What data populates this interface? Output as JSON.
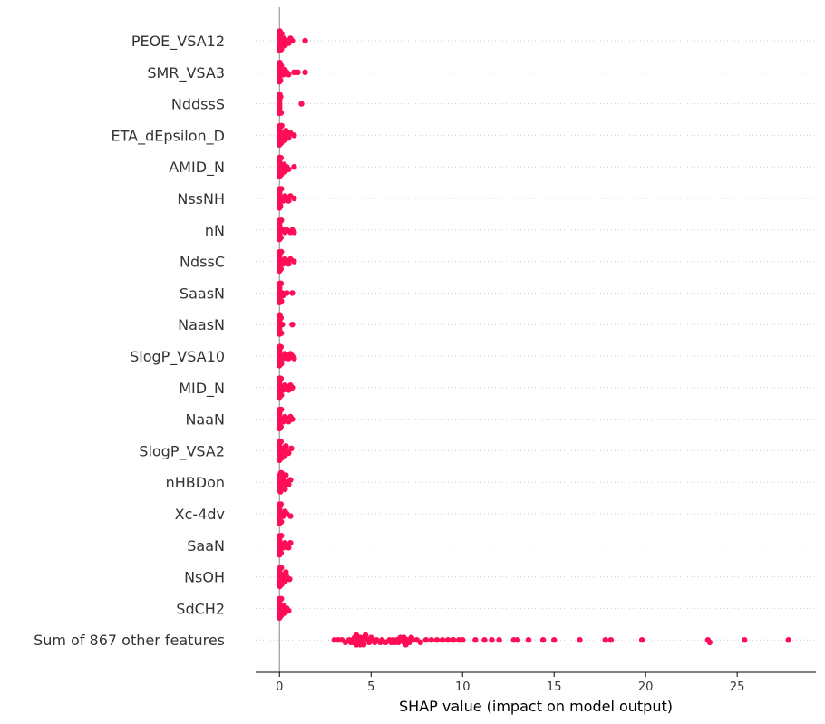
{
  "chart_data": {
    "type": "scatter",
    "subtype": "beeswarm",
    "title": "",
    "xlabel": "SHAP value (impact on model output)",
    "ylabel": "",
    "xlim": [
      -1.3,
      29.3
    ],
    "xticks": [
      0,
      5,
      10,
      15,
      20,
      25
    ],
    "grid": "horizontal-dotted",
    "legend": "none",
    "colors": {
      "points": "#ff0d57",
      "zero_line": "#999999",
      "grid": "#cccccc",
      "axis": "#000000"
    },
    "features": [
      {
        "name": "PEOE_VSA12",
        "values": [
          0,
          0,
          0,
          0,
          0,
          0,
          0,
          0,
          0,
          0,
          0,
          0,
          0.02,
          0.05,
          0.08,
          0.1,
          0.12,
          0.15,
          0.2,
          0.25,
          0.3,
          0.4,
          0.5,
          0.6,
          0.7,
          1.4
        ]
      },
      {
        "name": "SMR_VSA3",
        "values": [
          0,
          0,
          0,
          0,
          0,
          0,
          0,
          0,
          0,
          0,
          0,
          0,
          0.02,
          0.05,
          0.1,
          0.15,
          0.2,
          0.3,
          0.4,
          0.5,
          0.8,
          1.0,
          1.4
        ]
      },
      {
        "name": "NddssS",
        "values": [
          0,
          0,
          0,
          0,
          0,
          0,
          0,
          0,
          0,
          0,
          0,
          0,
          0,
          0,
          0.02,
          0.04,
          0.06,
          0.08,
          1.2
        ]
      },
      {
        "name": "ETA_dEpsilon_D",
        "values": [
          0,
          0,
          0,
          0,
          0,
          0,
          0,
          0,
          0.02,
          0.05,
          0.08,
          0.1,
          0.12,
          0.15,
          0.2,
          0.25,
          0.3,
          0.35,
          0.4,
          0.5,
          0.6,
          0.8
        ]
      },
      {
        "name": "AMID_N",
        "values": [
          0,
          0,
          0,
          0,
          0,
          0,
          0,
          0,
          0.02,
          0.05,
          0.08,
          0.1,
          0.15,
          0.2,
          0.25,
          0.3,
          0.4,
          0.5,
          0.8
        ]
      },
      {
        "name": "NssNH",
        "values": [
          0,
          0,
          0,
          0,
          0,
          0,
          0,
          0,
          0,
          0,
          0.02,
          0.05,
          0.1,
          0.15,
          0.2,
          0.3,
          0.4,
          0.5,
          0.6,
          0.8
        ]
      },
      {
        "name": "nN",
        "values": [
          0,
          0,
          0,
          0,
          0,
          0,
          0,
          0,
          0,
          0.02,
          0.05,
          0.08,
          0.1,
          0.2,
          0.3,
          0.4,
          0.6,
          0.7,
          0.8
        ]
      },
      {
        "name": "NdssC",
        "values": [
          0,
          0,
          0,
          0,
          0,
          0,
          0,
          0,
          0,
          0.02,
          0.05,
          0.08,
          0.1,
          0.15,
          0.2,
          0.3,
          0.4,
          0.5,
          0.6,
          0.8
        ]
      },
      {
        "name": "SaasN",
        "values": [
          0,
          0,
          0,
          0,
          0,
          0,
          0,
          0,
          0,
          0,
          0.02,
          0.05,
          0.08,
          0.1,
          0.15,
          0.2,
          0.4,
          0.7
        ]
      },
      {
        "name": "NaasN",
        "values": [
          0,
          0,
          0,
          0,
          0,
          0,
          0,
          0,
          0,
          0,
          0,
          0,
          0.02,
          0.05,
          0.08,
          0.1,
          0.15,
          0.7
        ]
      },
      {
        "name": "SlogP_VSA10",
        "values": [
          0,
          0,
          0,
          0,
          0,
          0,
          0,
          0,
          0.02,
          0.05,
          0.08,
          0.1,
          0.15,
          0.2,
          0.3,
          0.4,
          0.5,
          0.6,
          0.7,
          0.8
        ]
      },
      {
        "name": "MID_N",
        "values": [
          0,
          0,
          0,
          0,
          0,
          0,
          0,
          0,
          0.02,
          0.05,
          0.08,
          0.1,
          0.15,
          0.2,
          0.3,
          0.4,
          0.5,
          0.6,
          0.7
        ]
      },
      {
        "name": "NaaN",
        "values": [
          0,
          0,
          0,
          0,
          0,
          0,
          0,
          0,
          0,
          0.02,
          0.05,
          0.08,
          0.1,
          0.15,
          0.2,
          0.3,
          0.4,
          0.5,
          0.6,
          0.7
        ]
      },
      {
        "name": "SlogP_VSA2",
        "values": [
          0,
          0,
          0,
          0,
          0,
          0,
          0,
          0,
          0.02,
          0.05,
          0.08,
          0.1,
          0.15,
          0.2,
          0.25,
          0.3,
          0.35,
          0.4,
          0.5,
          0.65
        ]
      },
      {
        "name": "nHBDon",
        "values": [
          0,
          0,
          0,
          0,
          0,
          0,
          0.02,
          0.05,
          0.08,
          0.1,
          0.12,
          0.15,
          0.18,
          0.2,
          0.22,
          0.25,
          0.3,
          0.35,
          0.4,
          0.5,
          0.6
        ]
      },
      {
        "name": "Xc-4dv",
        "values": [
          0,
          0,
          0,
          0,
          0,
          0,
          0,
          0,
          0,
          0,
          0.02,
          0.05,
          0.08,
          0.1,
          0.15,
          0.2,
          0.3,
          0.4,
          0.6
        ]
      },
      {
        "name": "SaaN",
        "values": [
          0,
          0,
          0,
          0,
          0,
          0,
          0,
          0,
          0,
          0.02,
          0.05,
          0.08,
          0.1,
          0.15,
          0.2,
          0.3,
          0.4,
          0.5,
          0.6
        ]
      },
      {
        "name": "NsOH",
        "values": [
          0,
          0,
          0,
          0,
          0,
          0,
          0,
          0.02,
          0.05,
          0.08,
          0.1,
          0.12,
          0.15,
          0.2,
          0.25,
          0.3,
          0.35,
          0.4,
          0.55
        ]
      },
      {
        "name": "SdCH2",
        "values": [
          0,
          0,
          0,
          0,
          0,
          0,
          0,
          0,
          0,
          0.02,
          0.05,
          0.08,
          0.1,
          0.15,
          0.2,
          0.25,
          0.3,
          0.4,
          0.5
        ]
      },
      {
        "name": "Sum of 867 other features",
        "values": [
          3.0,
          3.2,
          3.4,
          3.6,
          3.8,
          3.9,
          4.0,
          4.0,
          4.1,
          4.2,
          4.2,
          4.3,
          4.3,
          4.4,
          4.4,
          4.5,
          4.5,
          4.6,
          4.6,
          4.7,
          4.8,
          4.9,
          5.0,
          5.1,
          5.2,
          5.3,
          5.5,
          5.6,
          5.8,
          6.0,
          6.1,
          6.2,
          6.3,
          6.4,
          6.5,
          6.6,
          6.7,
          6.8,
          6.8,
          6.9,
          7.0,
          7.1,
          7.2,
          7.3,
          7.5,
          7.7,
          8.0,
          8.3,
          8.6,
          8.9,
          9.2,
          9.5,
          9.8,
          10.0,
          10.7,
          11.2,
          11.6,
          12.0,
          12.8,
          13.0,
          13.6,
          14.4,
          15.0,
          16.4,
          17.8,
          18.1,
          19.8,
          23.4,
          23.5,
          25.4,
          27.8
        ]
      }
    ]
  }
}
